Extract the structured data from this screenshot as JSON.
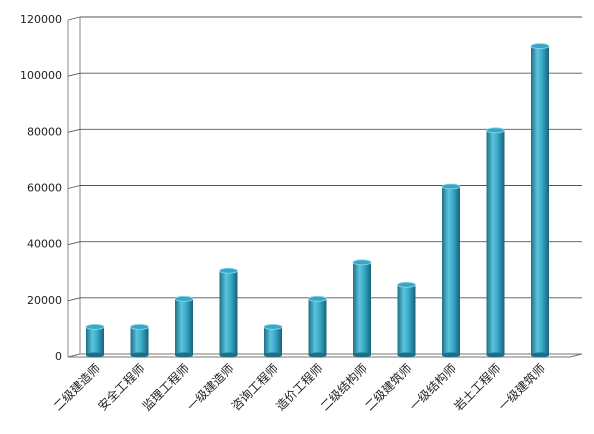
{
  "chart_data": {
    "type": "bar",
    "categories": [
      "二级建造师",
      "安全工程师",
      "监理工程师",
      "一级建造师",
      "咨询工程师",
      "造价工程师",
      "二级结构师",
      "二级建筑师",
      "一级结构师",
      "岩土工程师",
      "一级建筑师"
    ],
    "values": [
      10000,
      10000,
      20000,
      30000,
      10000,
      20000,
      33000,
      25000,
      60000,
      80000,
      110000
    ],
    "color": "#38a7c6",
    "ylim": [
      0,
      120000
    ],
    "yticks": [
      0,
      20000,
      40000,
      60000,
      80000,
      100000,
      120000
    ],
    "grid": true
  }
}
